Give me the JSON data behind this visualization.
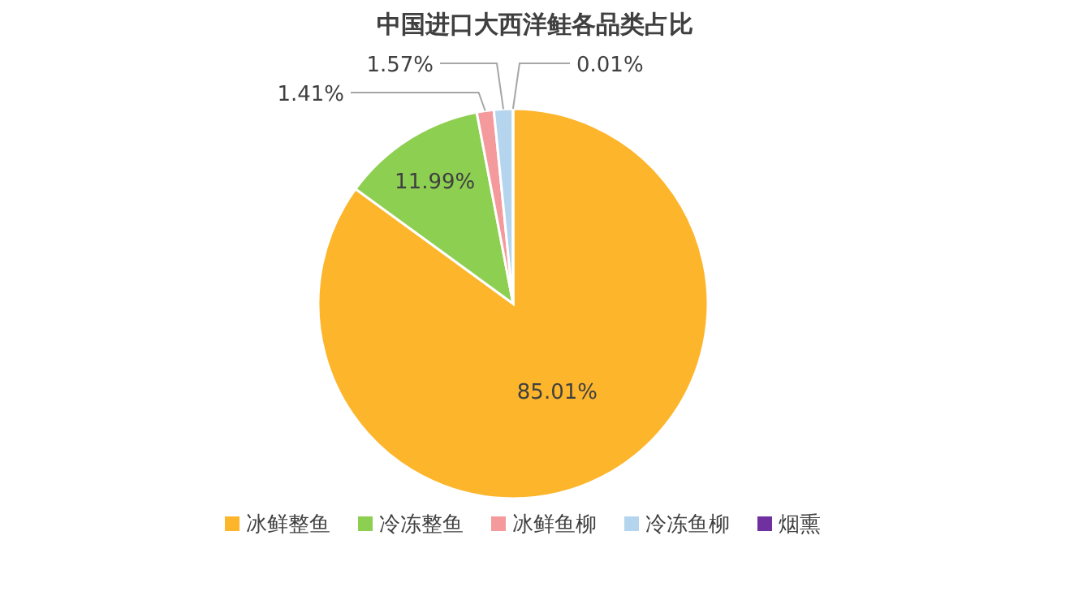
{
  "chart_data": {
    "type": "pie",
    "title": "中国进口大西洋鲑各品类占比",
    "categories": [
      "冰鲜整鱼",
      "冷冻整鱼",
      "冰鲜鱼柳",
      "冷冻鱼柳",
      "烟熏"
    ],
    "values": [
      85.01,
      11.99,
      1.41,
      1.57,
      0.01
    ],
    "colors": [
      "#fdb52b",
      "#8dcf51",
      "#f59a9c",
      "#b5d5ee",
      "#7030a0"
    ],
    "value_labels": [
      "85.01%",
      "11.99%",
      "1.41%",
      "1.57%",
      "0.01%"
    ],
    "legend": "bottom"
  }
}
